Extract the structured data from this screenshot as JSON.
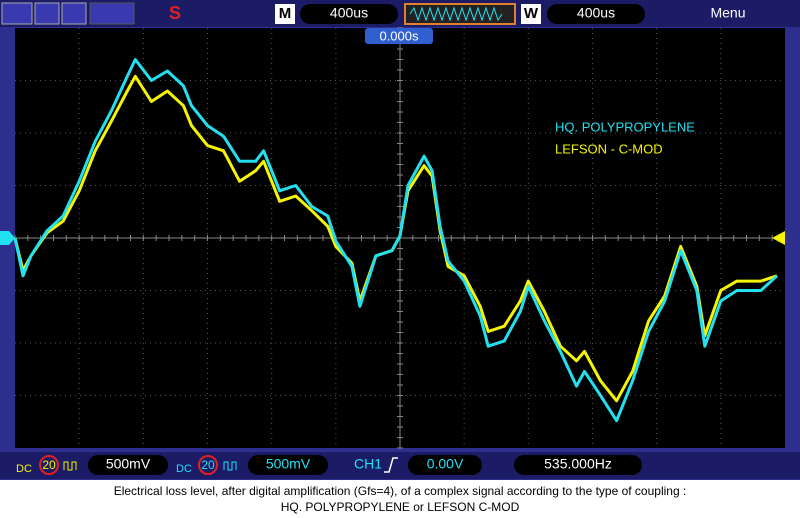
{
  "chart_data": {
    "type": "line",
    "x": [
      -2400,
      -2350,
      -2300,
      -2200,
      -2100,
      -2000,
      -1900,
      -1800,
      -1700,
      -1650,
      -1550,
      -1450,
      -1350,
      -1300,
      -1200,
      -1100,
      -1000,
      -900,
      -850,
      -750,
      -650,
      -550,
      -450,
      -400,
      -300,
      -250,
      -150,
      -50,
      0,
      50,
      150,
      200,
      250,
      300,
      400,
      500,
      550,
      650,
      750,
      800,
      900,
      1000,
      1100,
      1150,
      1250,
      1350,
      1450,
      1550,
      1650,
      1750,
      1850,
      1900,
      2000,
      2100,
      2250,
      2350
    ],
    "series": [
      {
        "name": "LEFSON - C-MOD",
        "color": "#f5f500",
        "values": [
          0,
          -0.31,
          -0.17,
          0.05,
          0.16,
          0.45,
          0.83,
          1.11,
          1.4,
          1.54,
          1.3,
          1.4,
          1.26,
          1.07,
          0.88,
          0.83,
          0.54,
          0.64,
          0.73,
          0.35,
          0.4,
          0.26,
          0.11,
          -0.08,
          -0.24,
          -0.6,
          -0.17,
          -0.12,
          0.02,
          0.45,
          0.69,
          0.59,
          0.07,
          -0.27,
          -0.36,
          -0.65,
          -0.89,
          -0.84,
          -0.6,
          -0.41,
          -0.7,
          -1.03,
          -1.17,
          -1.08,
          -1.36,
          -1.55,
          -1.27,
          -0.79,
          -0.55,
          -0.08,
          -0.46,
          -0.93,
          -0.5,
          -0.41,
          -0.41,
          -0.36
        ]
      },
      {
        "name": "HQ. POLYPROPYLENE",
        "color": "#22e0f0",
        "values": [
          0,
          -0.36,
          -0.17,
          0.07,
          0.21,
          0.54,
          0.92,
          1.21,
          1.54,
          1.7,
          1.5,
          1.59,
          1.45,
          1.26,
          1.07,
          0.97,
          0.73,
          0.73,
          0.83,
          0.45,
          0.5,
          0.3,
          0.21,
          -0.03,
          -0.27,
          -0.65,
          -0.17,
          -0.12,
          0.02,
          0.5,
          0.78,
          0.64,
          0.11,
          -0.22,
          -0.41,
          -0.74,
          -1.03,
          -0.98,
          -0.7,
          -0.46,
          -0.79,
          -1.08,
          -1.41,
          -1.27,
          -1.5,
          -1.74,
          -1.36,
          -0.89,
          -0.6,
          -0.12,
          -0.5,
          -1.03,
          -0.6,
          -0.5,
          -0.5,
          -0.36
        ]
      }
    ],
    "xlim": [
      -2400,
      2400
    ],
    "ylim": [
      -2,
      2
    ],
    "trigger_time": "0.000s"
  },
  "toolbar": {
    "m_label": "M",
    "m_time": "400us",
    "w_label": "W",
    "w_time": "400us",
    "menu": "Menu",
    "run_state": "S"
  },
  "status_bar": {
    "ch_a": {
      "coupling": "DC",
      "bw": "20",
      "scale": "500mV"
    },
    "ch_b": {
      "coupling": "DC",
      "bw": "20",
      "scale": "500mV"
    },
    "trigger_source": "CH1",
    "trigger_level": "0.00V",
    "frequency": "535.000Hz"
  },
  "caption": [
    "Electrical loss level, after digital amplification (Gfs=4), of a complex signal according to the type of coupling :",
    "HQ. POLYPROPYLENE or LEFSON C-MOD"
  ]
}
